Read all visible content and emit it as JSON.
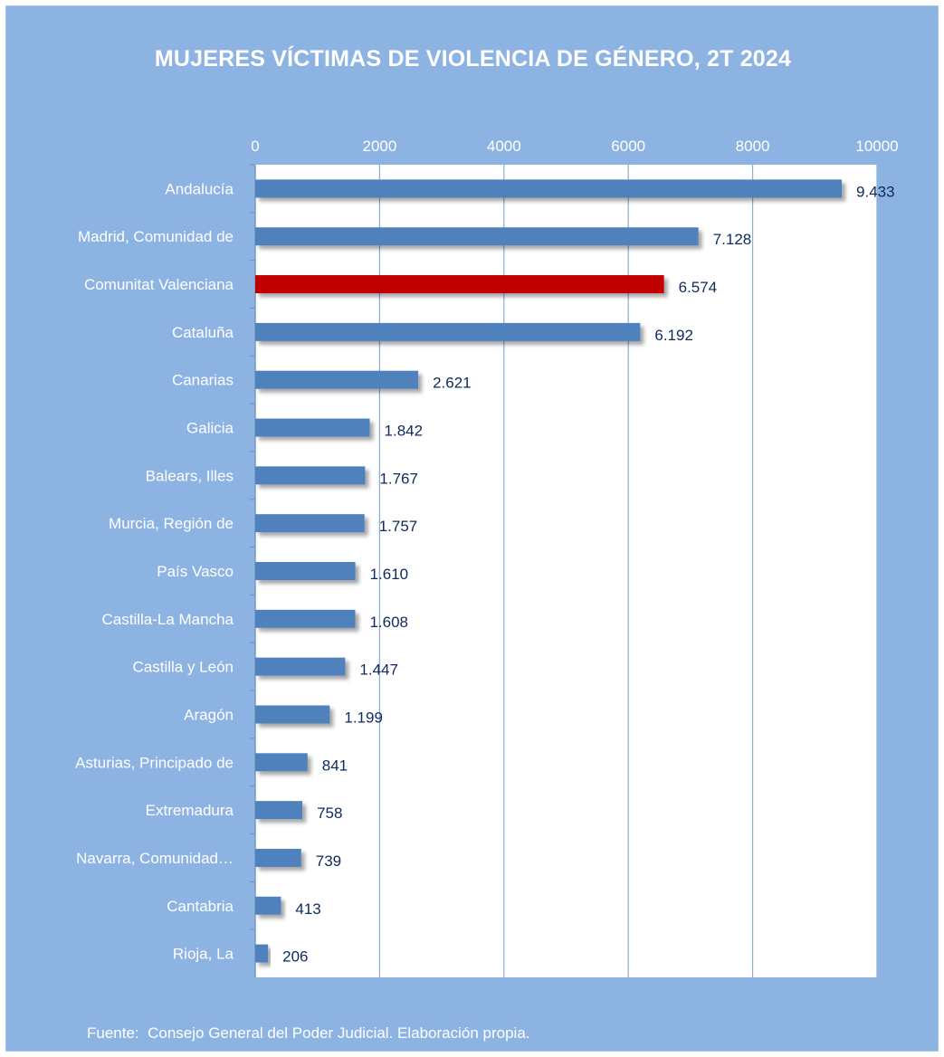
{
  "source": "Fuente:  Consejo General del Poder Judicial. Elaboración propia.",
  "colors": {
    "background": "#8db3e2",
    "plot": "#ffffff",
    "bar": "#4f81bd",
    "highlight": "#c00000",
    "grid": "#8aaed6"
  },
  "chart_data": {
    "type": "bar",
    "orientation": "horizontal",
    "title": "MUJERES VÍCTIMAS DE VIOLENCIA DE GÉNERO, 2T 2024",
    "xlim": [
      0,
      10000
    ],
    "ticks": [
      0,
      2000,
      4000,
      6000,
      8000,
      10000
    ],
    "tick_labels": [
      "0",
      "2000",
      "4000",
      "6000",
      "8000",
      "10000"
    ],
    "axis_position": "top",
    "grid": true,
    "highlight_index": 2,
    "categories": [
      "Andalucía",
      "Madrid, Comunidad de",
      "Comunitat Valenciana",
      "Cataluña",
      "Canarias",
      "Galicia",
      "Balears, Illes",
      "Murcia, Región de",
      "País Vasco",
      "Castilla-La Mancha",
      "Castilla y León",
      "Aragón",
      "Asturias, Principado de",
      "Extremadura",
      "Navarra, Comunidad…",
      "Cantabria",
      "Rioja, La"
    ],
    "values": [
      9433,
      7128,
      6574,
      6192,
      2621,
      1842,
      1767,
      1757,
      1610,
      1608,
      1447,
      1199,
      841,
      758,
      739,
      413,
      206
    ],
    "value_labels": [
      "9.433",
      "7.128",
      "6.574",
      "6.192",
      "2.621",
      "1.842",
      "1.767",
      "1.757",
      "1.610",
      "1.608",
      "1.447",
      "1.199",
      "841",
      "758",
      "739",
      "413",
      "206"
    ]
  }
}
